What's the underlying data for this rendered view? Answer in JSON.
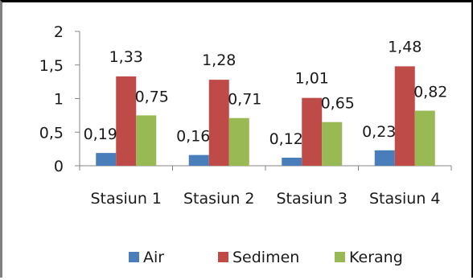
{
  "chart_data": {
    "type": "bar",
    "categories": [
      "Stasiun 1",
      "Stasiun 2",
      "Stasiun 3",
      "Stasiun 4"
    ],
    "series": [
      {
        "name": "Air",
        "values": [
          0.19,
          0.16,
          0.12,
          0.23
        ],
        "labels": [
          "0,19",
          "0,16",
          "0,12",
          "0,23"
        ],
        "color": "#4a7ebb"
      },
      {
        "name": "Sedimen",
        "values": [
          1.33,
          1.28,
          1.01,
          1.48
        ],
        "labels": [
          "1,33",
          "1,28",
          "1,01",
          "1,48"
        ],
        "color": "#be4b48"
      },
      {
        "name": "Kerang",
        "values": [
          0.75,
          0.71,
          0.65,
          0.82
        ],
        "labels": [
          "0,75",
          "0,71",
          "0,65",
          "0,82"
        ],
        "color": "#98b954"
      }
    ],
    "yticks": [
      0,
      0.5,
      1,
      1.5,
      2
    ],
    "ytick_labels": [
      "0",
      "0,5",
      "1",
      "1,5",
      "2"
    ],
    "ylim": [
      0,
      2
    ],
    "grid": false,
    "legend_position": "bottom",
    "title": "",
    "xlabel": "",
    "ylabel": ""
  }
}
